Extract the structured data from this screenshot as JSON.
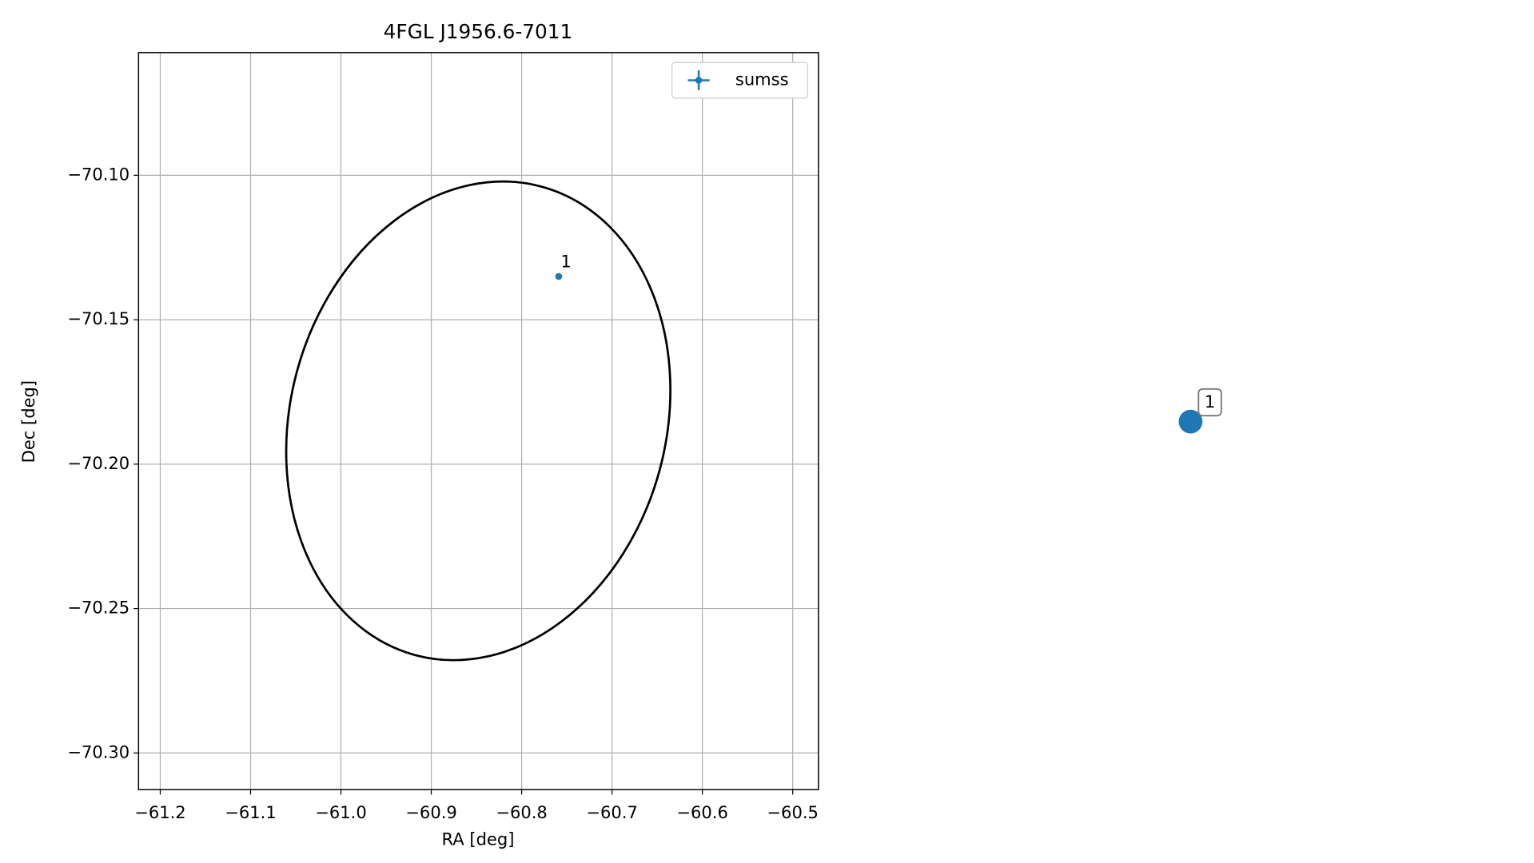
{
  "chart_data": [
    {
      "type": "scatter",
      "title": "4FGL J1956.6-7011",
      "x_label": "RA [deg]",
      "y_label": "Dec [deg]",
      "xlim": [
        -61.224,
        -60.4715
      ],
      "ylim": [
        -70.3127,
        -70.0575
      ],
      "xticks": [
        {
          "value": -61.2,
          "label": "−61.2"
        },
        {
          "value": -61.1,
          "label": "−61.1"
        },
        {
          "value": -61.0,
          "label": "−61.0"
        },
        {
          "value": -60.9,
          "label": "−60.9"
        },
        {
          "value": -60.8,
          "label": "−60.8"
        },
        {
          "value": -60.7,
          "label": "−60.7"
        },
        {
          "value": -60.6,
          "label": "−60.6"
        },
        {
          "value": -60.5,
          "label": "−60.5"
        }
      ],
      "yticks": [
        {
          "value": -70.1,
          "label": "−70.10"
        },
        {
          "value": -70.15,
          "label": "−70.15"
        },
        {
          "value": -70.2,
          "label": "−70.20"
        },
        {
          "value": -70.25,
          "label": "−70.25"
        },
        {
          "value": -70.3,
          "label": "−70.30"
        }
      ],
      "grid": true,
      "legend": "upper right",
      "series": [
        {
          "name": "sumss",
          "color": "#1f77b4",
          "x": [
            -60.759
          ],
          "values": [
            -70.135
          ],
          "labels": [
            "1"
          ]
        }
      ],
      "ellipse": {
        "ra": -60.848,
        "dec": -70.185,
        "width": 0.416,
        "height": 0.168,
        "angle": 15,
        "color": "#000000"
      }
    },
    {
      "type": "marker",
      "color": "#1f77b4",
      "labels": [
        "1"
      ]
    }
  ]
}
